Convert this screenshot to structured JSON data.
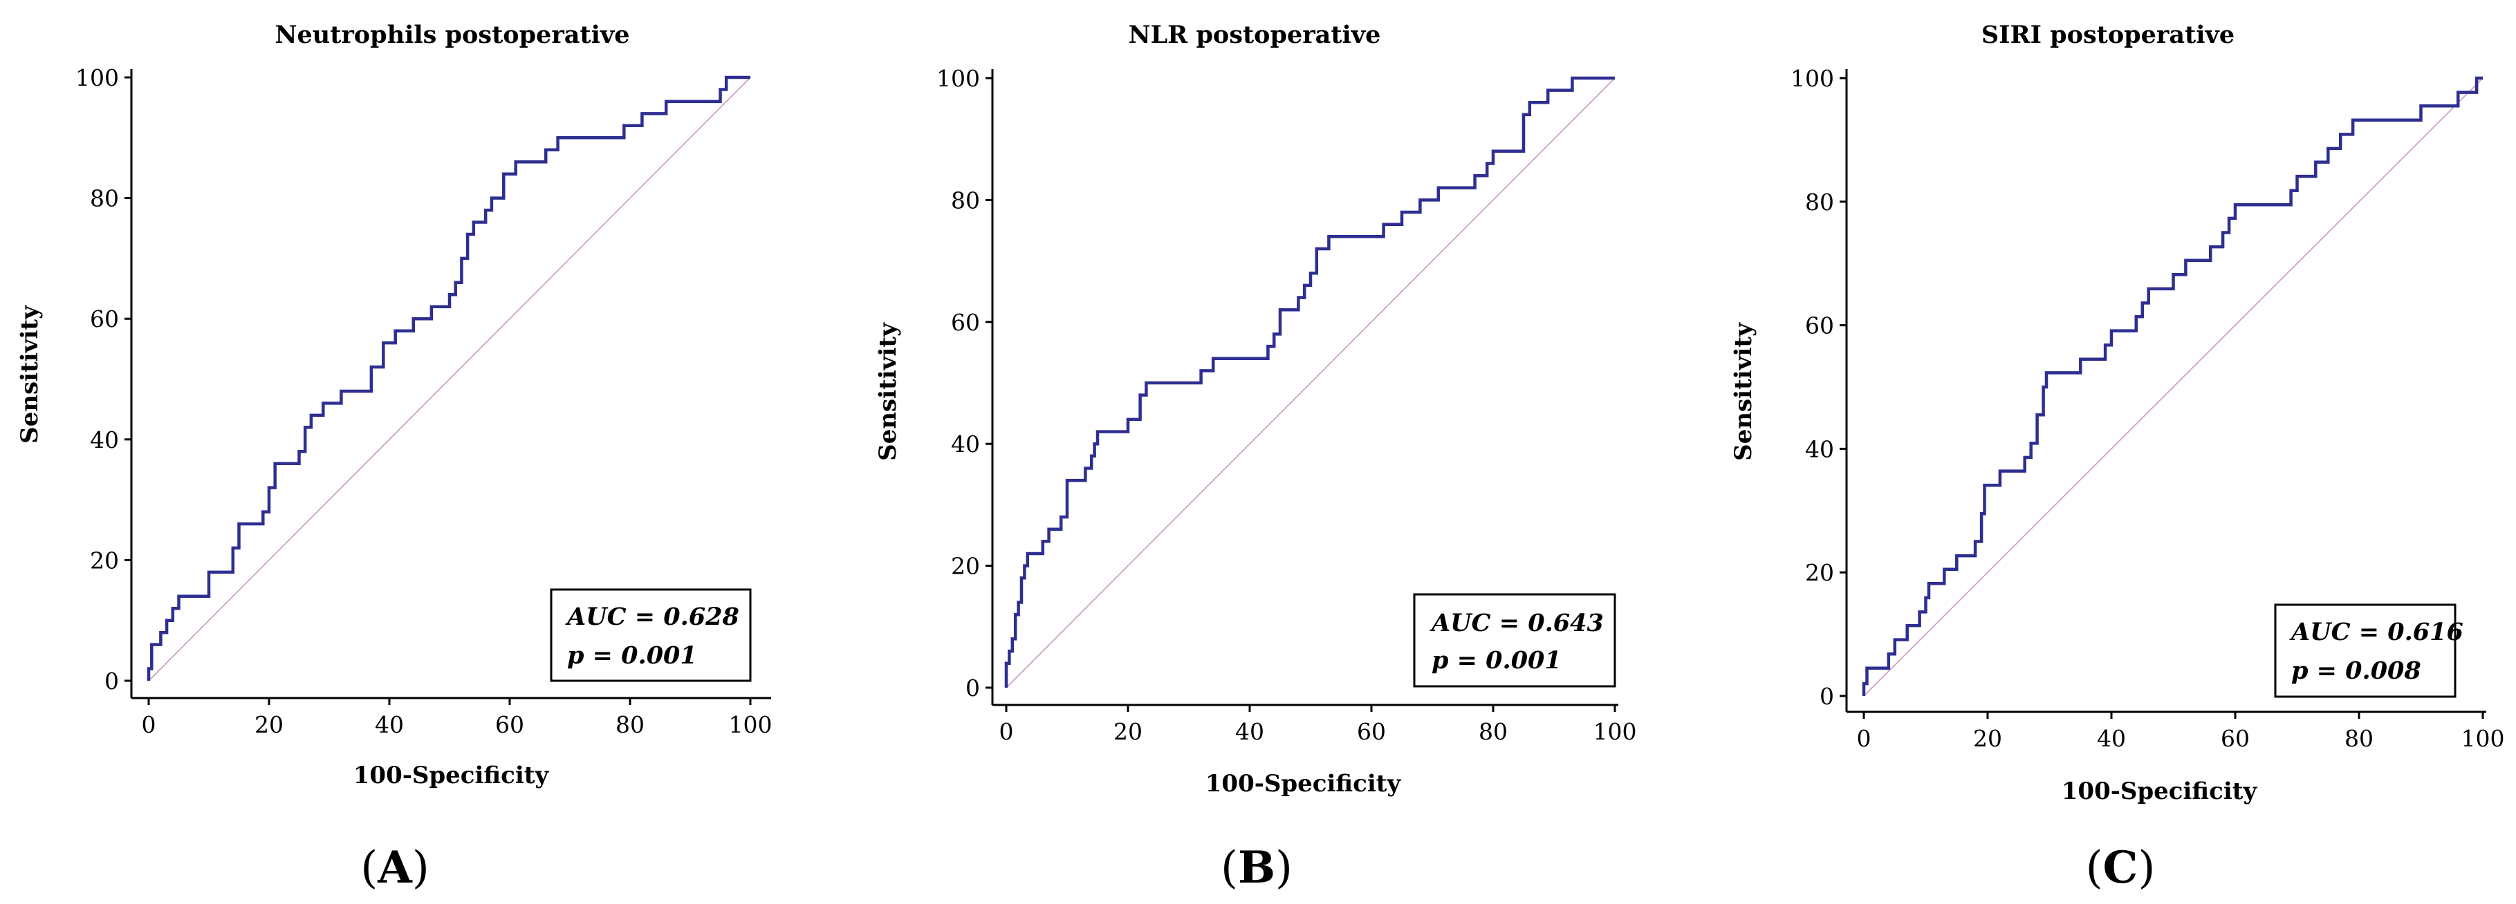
{
  "colors": {
    "roc": "#2e2e92",
    "diagonal": "#c79ac0"
  },
  "chart_data": [
    {
      "type": "line",
      "title": "Neutrophils  postoperative",
      "xlabel": "100-Specificity",
      "ylabel": "Sensitivity",
      "xlim": [
        0,
        100
      ],
      "ylim": [
        0,
        100
      ],
      "ticks": [
        "0",
        "20",
        "40",
        "60",
        "80",
        "100"
      ],
      "panel": {
        "open": "(",
        "letter": "A",
        "close": ")"
      },
      "auc_text": "AUC = 0.628",
      "p_text": "p = 0.001",
      "roc_points": [
        [
          0,
          0
        ],
        [
          0,
          2
        ],
        [
          0.5,
          2
        ],
        [
          0.5,
          6
        ],
        [
          2,
          6
        ],
        [
          2,
          8
        ],
        [
          3,
          8
        ],
        [
          3,
          10
        ],
        [
          4,
          10
        ],
        [
          4,
          12
        ],
        [
          5,
          12
        ],
        [
          5,
          14
        ],
        [
          10,
          14
        ],
        [
          10,
          18
        ],
        [
          14,
          18
        ],
        [
          14,
          22
        ],
        [
          15,
          22
        ],
        [
          15,
          26
        ],
        [
          19,
          26
        ],
        [
          19,
          28
        ],
        [
          20,
          28
        ],
        [
          20,
          32
        ],
        [
          21,
          32
        ],
        [
          21,
          36
        ],
        [
          25,
          36
        ],
        [
          25,
          38
        ],
        [
          26,
          38
        ],
        [
          26,
          42
        ],
        [
          27,
          42
        ],
        [
          27,
          44
        ],
        [
          29,
          44
        ],
        [
          29,
          46
        ],
        [
          32,
          46
        ],
        [
          32,
          48
        ],
        [
          37,
          48
        ],
        [
          37,
          52
        ],
        [
          39,
          52
        ],
        [
          39,
          56
        ],
        [
          41,
          56
        ],
        [
          41,
          58
        ],
        [
          44,
          58
        ],
        [
          44,
          60
        ],
        [
          47,
          60
        ],
        [
          47,
          62
        ],
        [
          50,
          62
        ],
        [
          50,
          64
        ],
        [
          51,
          64
        ],
        [
          51,
          66
        ],
        [
          52,
          66
        ],
        [
          52,
          70
        ],
        [
          53,
          70
        ],
        [
          53,
          74
        ],
        [
          54,
          74
        ],
        [
          54,
          76
        ],
        [
          56,
          76
        ],
        [
          56,
          78
        ],
        [
          57,
          78
        ],
        [
          57,
          80
        ],
        [
          59,
          80
        ],
        [
          59,
          84
        ],
        [
          61,
          84
        ],
        [
          61,
          86
        ],
        [
          66,
          86
        ],
        [
          66,
          88
        ],
        [
          68,
          88
        ],
        [
          68,
          90
        ],
        [
          79,
          90
        ],
        [
          79,
          92
        ],
        [
          82,
          92
        ],
        [
          82,
          94
        ],
        [
          86,
          94
        ],
        [
          86,
          96
        ],
        [
          95,
          96
        ],
        [
          95,
          98
        ],
        [
          96,
          98
        ],
        [
          96,
          100
        ],
        [
          100,
          100
        ]
      ],
      "diagonal": [
        [
          0,
          0
        ],
        [
          100,
          100
        ]
      ]
    },
    {
      "type": "line",
      "title": "NLR postoperative",
      "xlabel": "100-Specificity",
      "ylabel": "Sensitivity",
      "xlim": [
        0,
        100
      ],
      "ylim": [
        0,
        100
      ],
      "ticks": [
        "0",
        "20",
        "40",
        "60",
        "80",
        "100"
      ],
      "panel": {
        "open": "(",
        "letter": "B",
        "close": ")"
      },
      "auc_text": "AUC = 0.643",
      "p_text": "p = 0.001",
      "roc_points": [
        [
          0,
          0
        ],
        [
          0,
          4
        ],
        [
          0.5,
          4
        ],
        [
          0.5,
          6
        ],
        [
          1,
          6
        ],
        [
          1,
          8
        ],
        [
          1.5,
          8
        ],
        [
          1.5,
          12
        ],
        [
          2,
          12
        ],
        [
          2,
          14
        ],
        [
          2.5,
          14
        ],
        [
          2.5,
          18
        ],
        [
          3,
          18
        ],
        [
          3,
          20
        ],
        [
          3.5,
          20
        ],
        [
          3.5,
          22
        ],
        [
          6,
          22
        ],
        [
          6,
          24
        ],
        [
          7,
          24
        ],
        [
          7,
          26
        ],
        [
          9,
          26
        ],
        [
          9,
          28
        ],
        [
          10,
          28
        ],
        [
          10,
          34
        ],
        [
          13,
          34
        ],
        [
          13,
          36
        ],
        [
          14,
          36
        ],
        [
          14,
          38
        ],
        [
          14.5,
          38
        ],
        [
          14.5,
          40
        ],
        [
          15,
          40
        ],
        [
          15,
          42
        ],
        [
          20,
          42
        ],
        [
          20,
          44
        ],
        [
          22,
          44
        ],
        [
          22,
          48
        ],
        [
          23,
          48
        ],
        [
          23,
          50
        ],
        [
          32,
          50
        ],
        [
          32,
          52
        ],
        [
          34,
          52
        ],
        [
          34,
          54
        ],
        [
          43,
          54
        ],
        [
          43,
          56
        ],
        [
          44,
          56
        ],
        [
          44,
          58
        ],
        [
          45,
          58
        ],
        [
          45,
          62
        ],
        [
          48,
          62
        ],
        [
          48,
          64
        ],
        [
          49,
          64
        ],
        [
          49,
          66
        ],
        [
          50,
          66
        ],
        [
          50,
          68
        ],
        [
          51,
          68
        ],
        [
          51,
          72
        ],
        [
          53,
          72
        ],
        [
          53,
          74
        ],
        [
          62,
          74
        ],
        [
          62,
          76
        ],
        [
          65,
          76
        ],
        [
          65,
          78
        ],
        [
          68,
          78
        ],
        [
          68,
          80
        ],
        [
          71,
          80
        ],
        [
          71,
          82
        ],
        [
          77,
          82
        ],
        [
          77,
          84
        ],
        [
          79,
          84
        ],
        [
          79,
          86
        ],
        [
          80,
          86
        ],
        [
          80,
          88
        ],
        [
          85,
          88
        ],
        [
          85,
          94
        ],
        [
          86,
          94
        ],
        [
          86,
          96
        ],
        [
          89,
          96
        ],
        [
          89,
          98
        ],
        [
          93,
          98
        ],
        [
          93,
          100
        ],
        [
          100,
          100
        ]
      ],
      "diagonal": [
        [
          0,
          0
        ],
        [
          100,
          100
        ]
      ]
    },
    {
      "type": "line",
      "title": "SIRI postoperative",
      "xlabel": "100-Specificity",
      "ylabel": "Sensitivity",
      "xlim": [
        0,
        100
      ],
      "ylim": [
        0,
        100
      ],
      "ticks": [
        "0",
        "20",
        "40",
        "60",
        "80",
        "100"
      ],
      "panel": {
        "open": "(",
        "letter": "C",
        "close": ")"
      },
      "auc_text": "AUC = 0.616",
      "p_text": "p = 0.008",
      "roc_points": [
        [
          0,
          0
        ],
        [
          0,
          2
        ],
        [
          0.5,
          2
        ],
        [
          0.5,
          4.5
        ],
        [
          4,
          4.5
        ],
        [
          4,
          6.8
        ],
        [
          5,
          6.8
        ],
        [
          5,
          9.1
        ],
        [
          7,
          9.1
        ],
        [
          7,
          11.4
        ],
        [
          9,
          11.4
        ],
        [
          9,
          13.6
        ],
        [
          10,
          13.6
        ],
        [
          10,
          15.9
        ],
        [
          10.5,
          15.9
        ],
        [
          10.5,
          18.2
        ],
        [
          13,
          18.2
        ],
        [
          13,
          20.5
        ],
        [
          15,
          20.5
        ],
        [
          15,
          22.7
        ],
        [
          18,
          22.7
        ],
        [
          18,
          25
        ],
        [
          19,
          25
        ],
        [
          19,
          29.5
        ],
        [
          19.5,
          29.5
        ],
        [
          19.5,
          34.1
        ],
        [
          22,
          34.1
        ],
        [
          22,
          36.4
        ],
        [
          26,
          36.4
        ],
        [
          26,
          38.6
        ],
        [
          27,
          38.6
        ],
        [
          27,
          40.9
        ],
        [
          28,
          40.9
        ],
        [
          28,
          45.5
        ],
        [
          29,
          45.5
        ],
        [
          29,
          50
        ],
        [
          29.5,
          50
        ],
        [
          29.5,
          52.3
        ],
        [
          35,
          52.3
        ],
        [
          35,
          54.5
        ],
        [
          39,
          54.5
        ],
        [
          39,
          56.8
        ],
        [
          40,
          56.8
        ],
        [
          40,
          59.1
        ],
        [
          44,
          59.1
        ],
        [
          44,
          61.4
        ],
        [
          45,
          61.4
        ],
        [
          45,
          63.6
        ],
        [
          46,
          63.6
        ],
        [
          46,
          65.9
        ],
        [
          50,
          65.9
        ],
        [
          50,
          68.2
        ],
        [
          52,
          68.2
        ],
        [
          52,
          70.5
        ],
        [
          56,
          70.5
        ],
        [
          56,
          72.7
        ],
        [
          58,
          72.7
        ],
        [
          58,
          75
        ],
        [
          59,
          75
        ],
        [
          59,
          77.3
        ],
        [
          60,
          77.3
        ],
        [
          60,
          79.5
        ],
        [
          69,
          79.5
        ],
        [
          69,
          81.8
        ],
        [
          70,
          81.8
        ],
        [
          70,
          84.1
        ],
        [
          73,
          84.1
        ],
        [
          73,
          86.4
        ],
        [
          75,
          86.4
        ],
        [
          75,
          88.6
        ],
        [
          77,
          88.6
        ],
        [
          77,
          90.9
        ],
        [
          79,
          90.9
        ],
        [
          79,
          93.2
        ],
        [
          90,
          93.2
        ],
        [
          90,
          95.5
        ],
        [
          96,
          95.5
        ],
        [
          96,
          97.7
        ],
        [
          99,
          97.7
        ],
        [
          99,
          100
        ],
        [
          100,
          100
        ]
      ],
      "diagonal": [
        [
          0,
          0
        ],
        [
          100,
          100
        ]
      ]
    }
  ]
}
